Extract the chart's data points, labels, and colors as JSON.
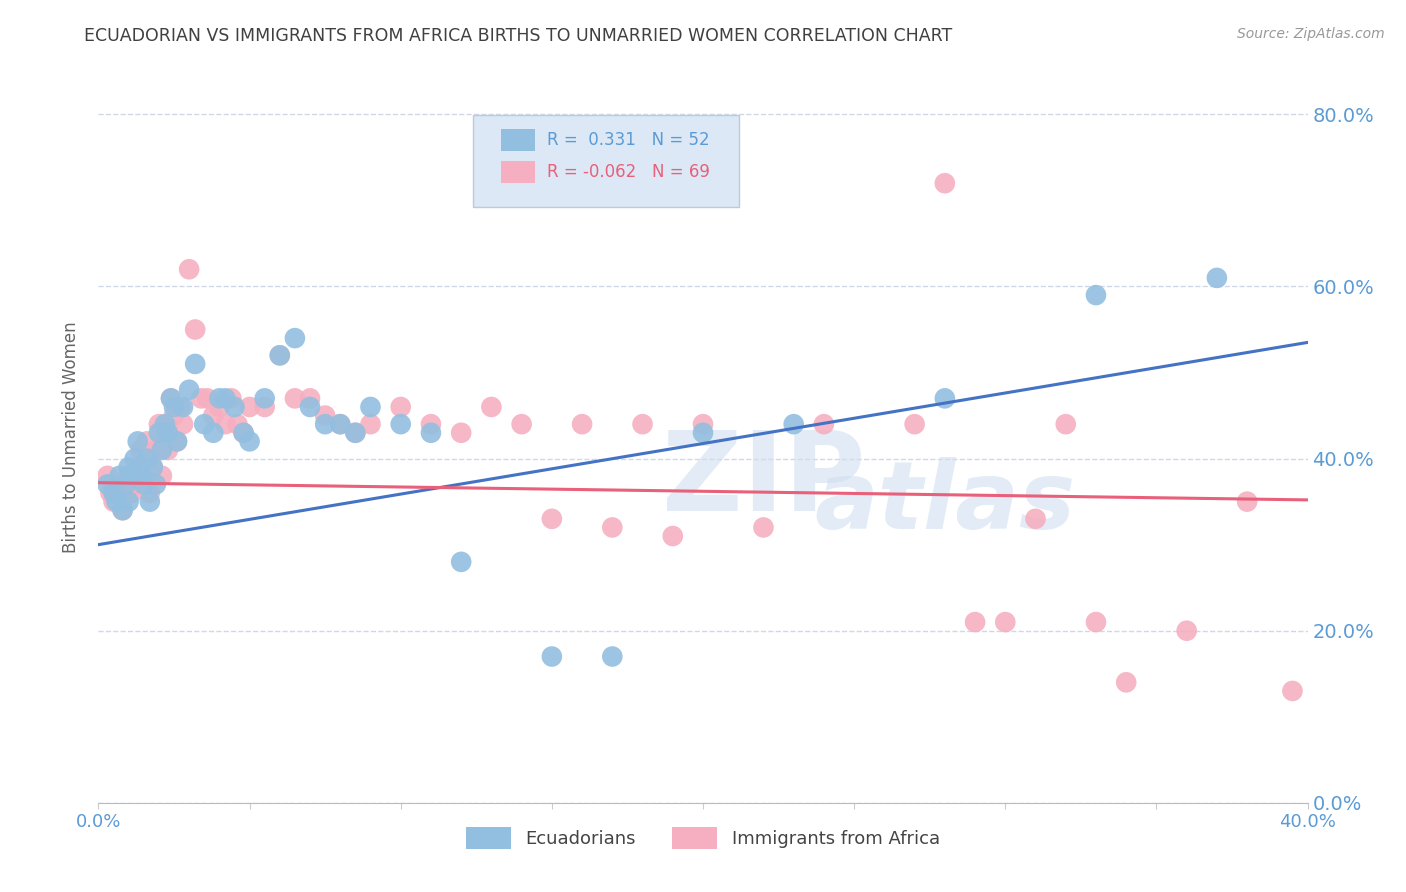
{
  "title": "ECUADORIAN VS IMMIGRANTS FROM AFRICA BIRTHS TO UNMARRIED WOMEN CORRELATION CHART",
  "source": "Source: ZipAtlas.com",
  "ylabel": "Births to Unmarried Women",
  "watermark_line1": "ZIP",
  "watermark_line2": "atlas",
  "xmin": 0.0,
  "xmax": 0.4,
  "ymin": 0.0,
  "ymax": 0.85,
  "yticks": [
    0.0,
    0.2,
    0.4,
    0.6,
    0.8
  ],
  "xtick_labels": [
    "0.0%",
    "40.0%"
  ],
  "xtick_vals": [
    0.0,
    0.4
  ],
  "blue_label": "Ecuadorians",
  "pink_label": "Immigrants from Africa",
  "blue_R": 0.331,
  "blue_N": 52,
  "pink_R": -0.062,
  "pink_N": 69,
  "blue_color": "#92bfe0",
  "pink_color": "#f5afc0",
  "blue_line_color": "#4472c4",
  "pink_line_color": "#e8607a",
  "blue_trend_x": [
    0.0,
    0.4
  ],
  "blue_trend_y": [
    0.3,
    0.535
  ],
  "pink_trend_x": [
    0.0,
    0.4
  ],
  "pink_trend_y": [
    0.372,
    0.352
  ],
  "blue_points_x": [
    0.003,
    0.005,
    0.006,
    0.007,
    0.008,
    0.009,
    0.01,
    0.01,
    0.011,
    0.012,
    0.013,
    0.014,
    0.015,
    0.016,
    0.017,
    0.018,
    0.019,
    0.02,
    0.021,
    0.022,
    0.023,
    0.024,
    0.025,
    0.026,
    0.028,
    0.03,
    0.032,
    0.035,
    0.038,
    0.04,
    0.042,
    0.045,
    0.048,
    0.05,
    0.055,
    0.06,
    0.065,
    0.07,
    0.075,
    0.08,
    0.085,
    0.09,
    0.1,
    0.11,
    0.12,
    0.15,
    0.17,
    0.2,
    0.23,
    0.28,
    0.33,
    0.37
  ],
  "blue_points_y": [
    0.37,
    0.36,
    0.35,
    0.38,
    0.34,
    0.37,
    0.39,
    0.35,
    0.38,
    0.4,
    0.42,
    0.38,
    0.37,
    0.4,
    0.35,
    0.39,
    0.37,
    0.43,
    0.41,
    0.44,
    0.43,
    0.47,
    0.46,
    0.42,
    0.46,
    0.48,
    0.51,
    0.44,
    0.43,
    0.47,
    0.47,
    0.46,
    0.43,
    0.42,
    0.47,
    0.52,
    0.54,
    0.46,
    0.44,
    0.44,
    0.43,
    0.46,
    0.44,
    0.43,
    0.28,
    0.17,
    0.17,
    0.43,
    0.44,
    0.47,
    0.59,
    0.61
  ],
  "pink_points_x": [
    0.003,
    0.004,
    0.005,
    0.006,
    0.007,
    0.008,
    0.009,
    0.01,
    0.011,
    0.012,
    0.013,
    0.014,
    0.015,
    0.016,
    0.017,
    0.018,
    0.019,
    0.02,
    0.021,
    0.022,
    0.023,
    0.024,
    0.025,
    0.026,
    0.027,
    0.028,
    0.03,
    0.032,
    0.034,
    0.036,
    0.038,
    0.04,
    0.042,
    0.044,
    0.046,
    0.048,
    0.05,
    0.055,
    0.06,
    0.065,
    0.07,
    0.075,
    0.08,
    0.085,
    0.09,
    0.1,
    0.11,
    0.12,
    0.13,
    0.14,
    0.15,
    0.16,
    0.17,
    0.18,
    0.19,
    0.2,
    0.22,
    0.24,
    0.27,
    0.28,
    0.29,
    0.3,
    0.31,
    0.32,
    0.33,
    0.34,
    0.36,
    0.38,
    0.395
  ],
  "pink_points_y": [
    0.38,
    0.36,
    0.35,
    0.37,
    0.36,
    0.34,
    0.37,
    0.38,
    0.36,
    0.37,
    0.39,
    0.41,
    0.38,
    0.42,
    0.36,
    0.39,
    0.41,
    0.44,
    0.38,
    0.43,
    0.41,
    0.47,
    0.45,
    0.42,
    0.46,
    0.44,
    0.62,
    0.55,
    0.47,
    0.47,
    0.45,
    0.46,
    0.44,
    0.47,
    0.44,
    0.43,
    0.46,
    0.46,
    0.52,
    0.47,
    0.47,
    0.45,
    0.44,
    0.43,
    0.44,
    0.46,
    0.44,
    0.43,
    0.46,
    0.44,
    0.33,
    0.44,
    0.32,
    0.44,
    0.31,
    0.44,
    0.32,
    0.44,
    0.44,
    0.72,
    0.21,
    0.21,
    0.33,
    0.44,
    0.21,
    0.14,
    0.2,
    0.35,
    0.13
  ],
  "background_color": "#ffffff",
  "grid_color": "#d0d8e8",
  "axis_color": "#5b9bd5",
  "title_color": "#404040",
  "legend_bg": "#dce8f5",
  "legend_border": "#b8ccdf"
}
